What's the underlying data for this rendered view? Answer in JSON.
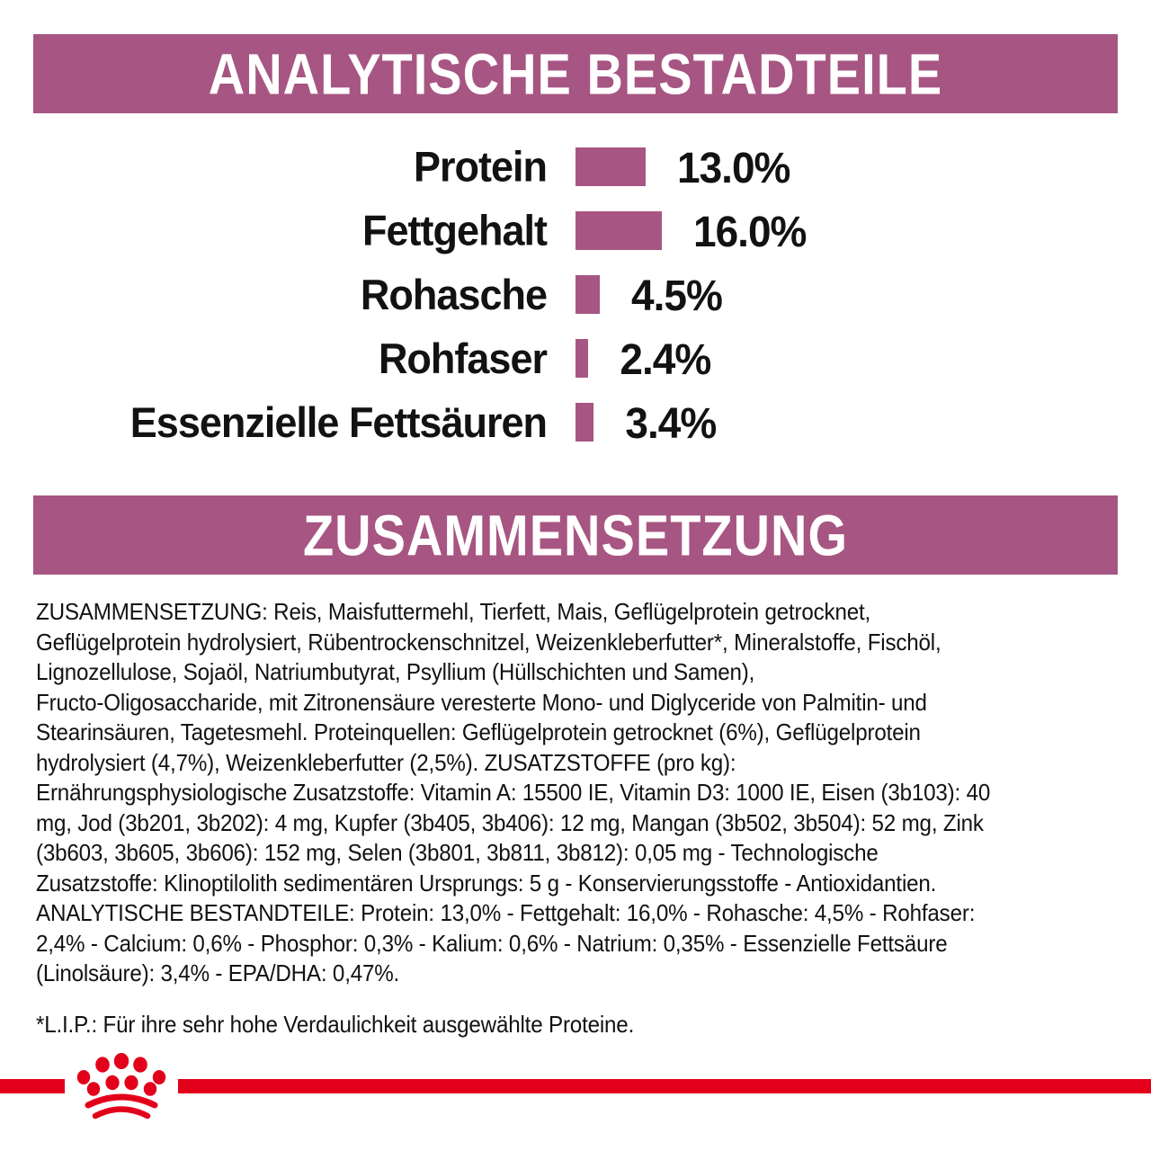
{
  "colors": {
    "magenta": "#a75582",
    "red": "#e2001a",
    "text": "#121212",
    "background": "#ffffff"
  },
  "sections": {
    "analytical": {
      "title": "ANALYTISCHE BESTADTEILE"
    },
    "composition": {
      "title": "ZUSAMMENSETZUNG"
    }
  },
  "chart_data": {
    "type": "bar",
    "orientation": "horizontal",
    "title": "ANALYTISCHE BESTADTEILE",
    "categories": [
      "Protein",
      "Fettgehalt",
      "Rohasche",
      "Rohfaser",
      "Essenzielle Fettsäuren"
    ],
    "values": [
      13.0,
      16.0,
      4.5,
      2.4,
      3.4
    ],
    "value_labels": [
      "13.0%",
      "16.0%",
      "4.5%",
      "2.4%",
      "3.4%"
    ],
    "unit": "%",
    "xlim": [
      0,
      16
    ],
    "bar_color": "#a75582",
    "grid": false,
    "axes_shown": false
  },
  "composition": {
    "lines": [
      "ZUSAMMENSETZUNG: Reis, Maisfuttermehl, Tierfett, Mais, Geflügelprotein getrocknet,",
      "Geflügelprotein hydrolysiert, Rübentrockenschnitzel, Weizenkleberfutter*, Mineralstoffe, Fischöl,",
      "Lignozellulose, Sojaöl, Natriumbutyrat, Psyllium (Hüllschichten und Samen),",
      "Fructo-Oligosaccharide, mit Zitronensäure veresterte Mono- und Diglyceride von Palmitin- und",
      "Stearinsäuren, Tagetesmehl. Proteinquellen: Geflügelprotein getrocknet (6%), Geflügelprotein",
      "hydrolysiert (4,7%), Weizenkleberfutter (2,5%). ZUSATZSTOFFE (pro kg):",
      "Ernährungsphysiologische Zusatzstoffe: Vitamin A: 15500 IE, Vitamin D3: 1000 IE, Eisen (3b103): 40",
      "mg, Jod (3b201, 3b202): 4 mg, Kupfer (3b405, 3b406): 12 mg, Mangan (3b502, 3b504): 52 mg, Zink",
      "(3b603, 3b605, 3b606): 152 mg, Selen (3b801, 3b811, 3b812): 0,05 mg - Technologische",
      "Zusatzstoffe: Klinoptilolith sedimentären Ursprungs: 5 g - Konservierungsstoffe - Antioxidantien.",
      "ANALYTISCHE BESTANDTEILE: Protein: 13,0% - Fettgehalt: 16,0% - Rohasche: 4,5% - Rohfaser:",
      "2,4% - Calcium: 0,6% - Phosphor: 0,3% - Kalium: 0,6% - Natrium: 0,35% - Essenzielle Fettsäure",
      "(Linolsäure): 3,4% - EPA/DHA: 0,47%."
    ]
  },
  "footnote": "*L.I.P.: Für ihre sehr hohe Verdaulichkeit ausgewählte Proteine.",
  "footer": {
    "logo": "royal-canin-crown-logo",
    "line_color": "#e2001a"
  }
}
